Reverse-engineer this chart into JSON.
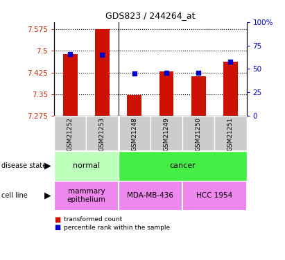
{
  "title": "GDS823 / 244264_at",
  "samples": [
    "GSM21252",
    "GSM21253",
    "GSM21248",
    "GSM21249",
    "GSM21250",
    "GSM21251"
  ],
  "bar_values": [
    7.488,
    7.575,
    7.348,
    7.428,
    7.412,
    7.462
  ],
  "bar_bottom": 7.275,
  "percentile_values": [
    66,
    65,
    45,
    46,
    46,
    58
  ],
  "percentile_scale_min": 0,
  "percentile_scale_max": 100,
  "ylim_min": 7.275,
  "ylim_max": 7.6,
  "yticks": [
    7.275,
    7.35,
    7.425,
    7.5,
    7.575
  ],
  "right_yticks": [
    0,
    25,
    50,
    75,
    100
  ],
  "right_ytick_labels": [
    "0",
    "25",
    "50",
    "75",
    "100%"
  ],
  "bar_color": "#cc1100",
  "dot_color": "#0000cc",
  "dot_size": 25,
  "disease_state_colors": {
    "normal": "#bbffbb",
    "cancer": "#44ee44"
  },
  "cell_line_color": "#ee88ee",
  "label_color_left": "#cc2200",
  "label_color_right": "#0000cc",
  "sample_box_color": "#cccccc",
  "ds_groups": [
    {
      "label": "normal",
      "indices": [
        0,
        1
      ],
      "color": "#bbffbb"
    },
    {
      "label": "cancer",
      "indices": [
        2,
        3,
        4,
        5
      ],
      "color": "#44ee44"
    }
  ],
  "cl_groups": [
    {
      "label": "mammary\nepithelium",
      "indices": [
        0,
        1
      ],
      "color": "#ee88ee"
    },
    {
      "label": "MDA-MB-436",
      "indices": [
        2,
        3
      ],
      "color": "#ee88ee"
    },
    {
      "label": "HCC 1954",
      "indices": [
        4,
        5
      ],
      "color": "#ee88ee"
    }
  ],
  "bar_width": 0.45
}
